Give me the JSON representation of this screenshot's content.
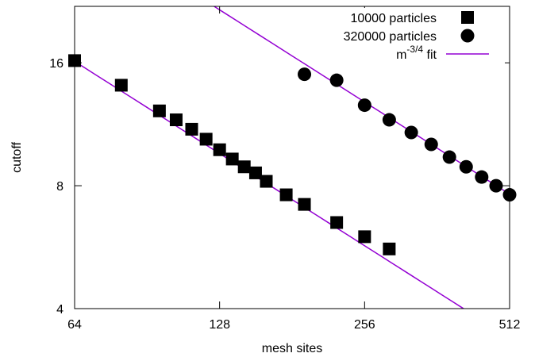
{
  "chart_data": {
    "type": "scatter",
    "title": "",
    "xlabel": "mesh sites",
    "ylabel": "cutoff",
    "xscale": "log2",
    "yscale": "log2",
    "xlim": [
      64,
      512
    ],
    "ylim": [
      4,
      22
    ],
    "grid": false,
    "legend_position": "top-right",
    "xticks": [
      64,
      128,
      256,
      512
    ],
    "xtick_labels": [
      "64",
      "128",
      "256",
      "512"
    ],
    "yticks": [
      4,
      8,
      16
    ],
    "ytick_labels": [
      "4",
      "8",
      "16"
    ],
    "series": [
      {
        "name": "10000 particles",
        "marker": "square",
        "color": "#000000",
        "points": [
          [
            64,
            16.2
          ],
          [
            80,
            14.1
          ],
          [
            96,
            12.2
          ],
          [
            104,
            11.6
          ],
          [
            112,
            11.0
          ],
          [
            120,
            10.4
          ],
          [
            128,
            9.8
          ],
          [
            136,
            9.3
          ],
          [
            144,
            8.9
          ],
          [
            152,
            8.6
          ],
          [
            160,
            8.2
          ],
          [
            176,
            7.6
          ],
          [
            192,
            7.2
          ],
          [
            224,
            6.5
          ],
          [
            256,
            6.0
          ],
          [
            288,
            5.6
          ]
        ]
      },
      {
        "name": "320000 particles",
        "marker": "circle",
        "color": "#000000",
        "points": [
          [
            192,
            15.0
          ],
          [
            224,
            14.5
          ],
          [
            256,
            12.6
          ],
          [
            288,
            11.6
          ],
          [
            320,
            10.8
          ],
          [
            352,
            10.1
          ],
          [
            384,
            9.4
          ],
          [
            416,
            8.9
          ],
          [
            448,
            8.4
          ],
          [
            480,
            8.0
          ],
          [
            512,
            7.6
          ]
        ]
      },
      {
        "name": "m",
        "name_superscript": "-3/4",
        "name_suffix": " fit",
        "type": "line",
        "color": "#9400d3",
        "exponent": -0.75,
        "fits": [
          {
            "coefficient": 365,
            "x_range": [
              64,
              450
            ]
          },
          {
            "coefficient": 821,
            "x_range": [
              64,
              512
            ]
          }
        ]
      }
    ]
  }
}
